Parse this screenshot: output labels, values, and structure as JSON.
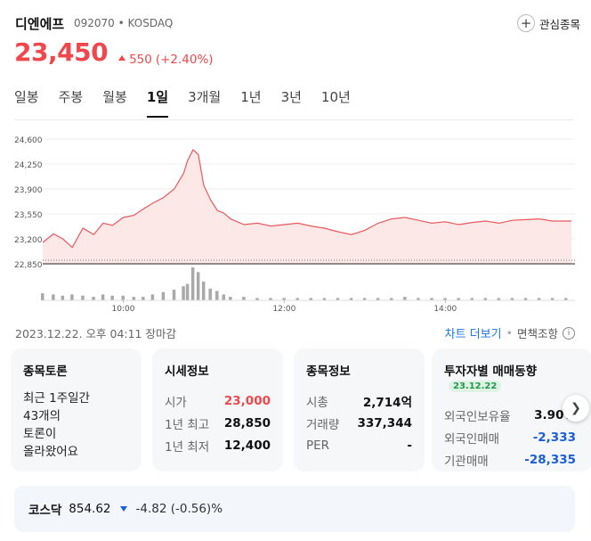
{
  "stock": {
    "name": "디엔에프",
    "code": "092070",
    "separator": "•",
    "market": "KOSDAQ",
    "price": "23,450",
    "change_amount": "550",
    "change_percent": "(+2.40%)",
    "watch_label": "관심종목",
    "color_up": "#f1474c",
    "color_down": "#1a5fd8"
  },
  "tabs": [
    {
      "label": "일봉",
      "active": false
    },
    {
      "label": "주봉",
      "active": false
    },
    {
      "label": "월봉",
      "active": false
    },
    {
      "label": "1일",
      "active": true
    },
    {
      "label": "3개월",
      "active": false
    },
    {
      "label": "1년",
      "active": false
    },
    {
      "label": "3년",
      "active": false
    },
    {
      "label": "10년",
      "active": false
    }
  ],
  "chart_data": {
    "type": "area",
    "title": "",
    "xlabel": "",
    "ylabel": "",
    "yticks": [
      "24,600",
      "24,250",
      "23,900",
      "23,550",
      "23,200",
      "22,850"
    ],
    "xticks": [
      "10:00",
      "12:00",
      "14:00"
    ],
    "ylim": [
      22850,
      24600
    ],
    "reference_line": 22900,
    "x": [
      "09:00",
      "09:08",
      "09:15",
      "09:22",
      "09:30",
      "09:38",
      "09:45",
      "09:52",
      "10:00",
      "10:08",
      "10:15",
      "10:22",
      "10:30",
      "10:38",
      "10:45",
      "10:48",
      "10:52",
      "10:56",
      "11:00",
      "11:05",
      "11:10",
      "11:15",
      "11:20",
      "11:30",
      "11:40",
      "11:50",
      "12:00",
      "12:10",
      "12:20",
      "12:30",
      "12:40",
      "12:50",
      "13:00",
      "13:10",
      "13:20",
      "13:30",
      "13:40",
      "13:50",
      "14:00",
      "14:10",
      "14:20",
      "14:30",
      "14:40",
      "14:50",
      "15:00",
      "15:10",
      "15:20",
      "15:30"
    ],
    "values": [
      23150,
      23270,
      23200,
      23080,
      23350,
      23260,
      23420,
      23390,
      23500,
      23530,
      23620,
      23700,
      23780,
      23900,
      24120,
      24300,
      24450,
      24380,
      23950,
      23750,
      23600,
      23560,
      23480,
      23400,
      23420,
      23380,
      23400,
      23420,
      23380,
      23350,
      23300,
      23260,
      23320,
      23420,
      23480,
      23500,
      23460,
      23420,
      23440,
      23400,
      23430,
      23450,
      23420,
      23460,
      23470,
      23480,
      23450,
      23450
    ],
    "volume": [
      6,
      5,
      4,
      5,
      4,
      3,
      5,
      4,
      4,
      3,
      3,
      5,
      7,
      9,
      12,
      14,
      28,
      24,
      16,
      10,
      8,
      5,
      3,
      3,
      2,
      2,
      2,
      2,
      2,
      2,
      2,
      2,
      2,
      2,
      2,
      3,
      2,
      2,
      2,
      2,
      2,
      2,
      2,
      2,
      2,
      2,
      2,
      2
    ],
    "series_color": "#e8595e",
    "fill_color": "#fde8e8",
    "grid": "horizontal"
  },
  "footer": {
    "timestamp": "2023.12.22. 오후 04:11 장마감",
    "more_chart": "차트 더보기",
    "separator": "•",
    "disclaimer": "면책조항",
    "info_icon": "ⓘ"
  },
  "cards": {
    "discussion": {
      "title": "종목토론",
      "line1": "최근 1주일간",
      "line2": "43개의",
      "line3": "토론이",
      "line4": "올라왔어요"
    },
    "quote": {
      "title": "시세정보",
      "rows": [
        {
          "label": "시가",
          "value": "23,000"
        },
        {
          "label": "1년 최고",
          "value": "28,850"
        },
        {
          "label": "1년 최저",
          "value": "12,400"
        }
      ]
    },
    "info": {
      "title": "종목정보",
      "rows": [
        {
          "label": "시총",
          "value": "2,714억"
        },
        {
          "label": "거래량",
          "value": "337,344"
        },
        {
          "label": "PER",
          "value": "-"
        }
      ]
    },
    "investor": {
      "title": "투자자별 매매동향",
      "date": "23.12.22",
      "rows": [
        {
          "label": "외국인보유율",
          "value": "3.90%"
        },
        {
          "label": "외국인매매",
          "value": "-2,333"
        },
        {
          "label": "기관매매",
          "value": "-28,335"
        }
      ]
    }
  },
  "index": {
    "name": "코스닥",
    "value": "854.62",
    "change": "-4.82 (-0.56)%"
  }
}
